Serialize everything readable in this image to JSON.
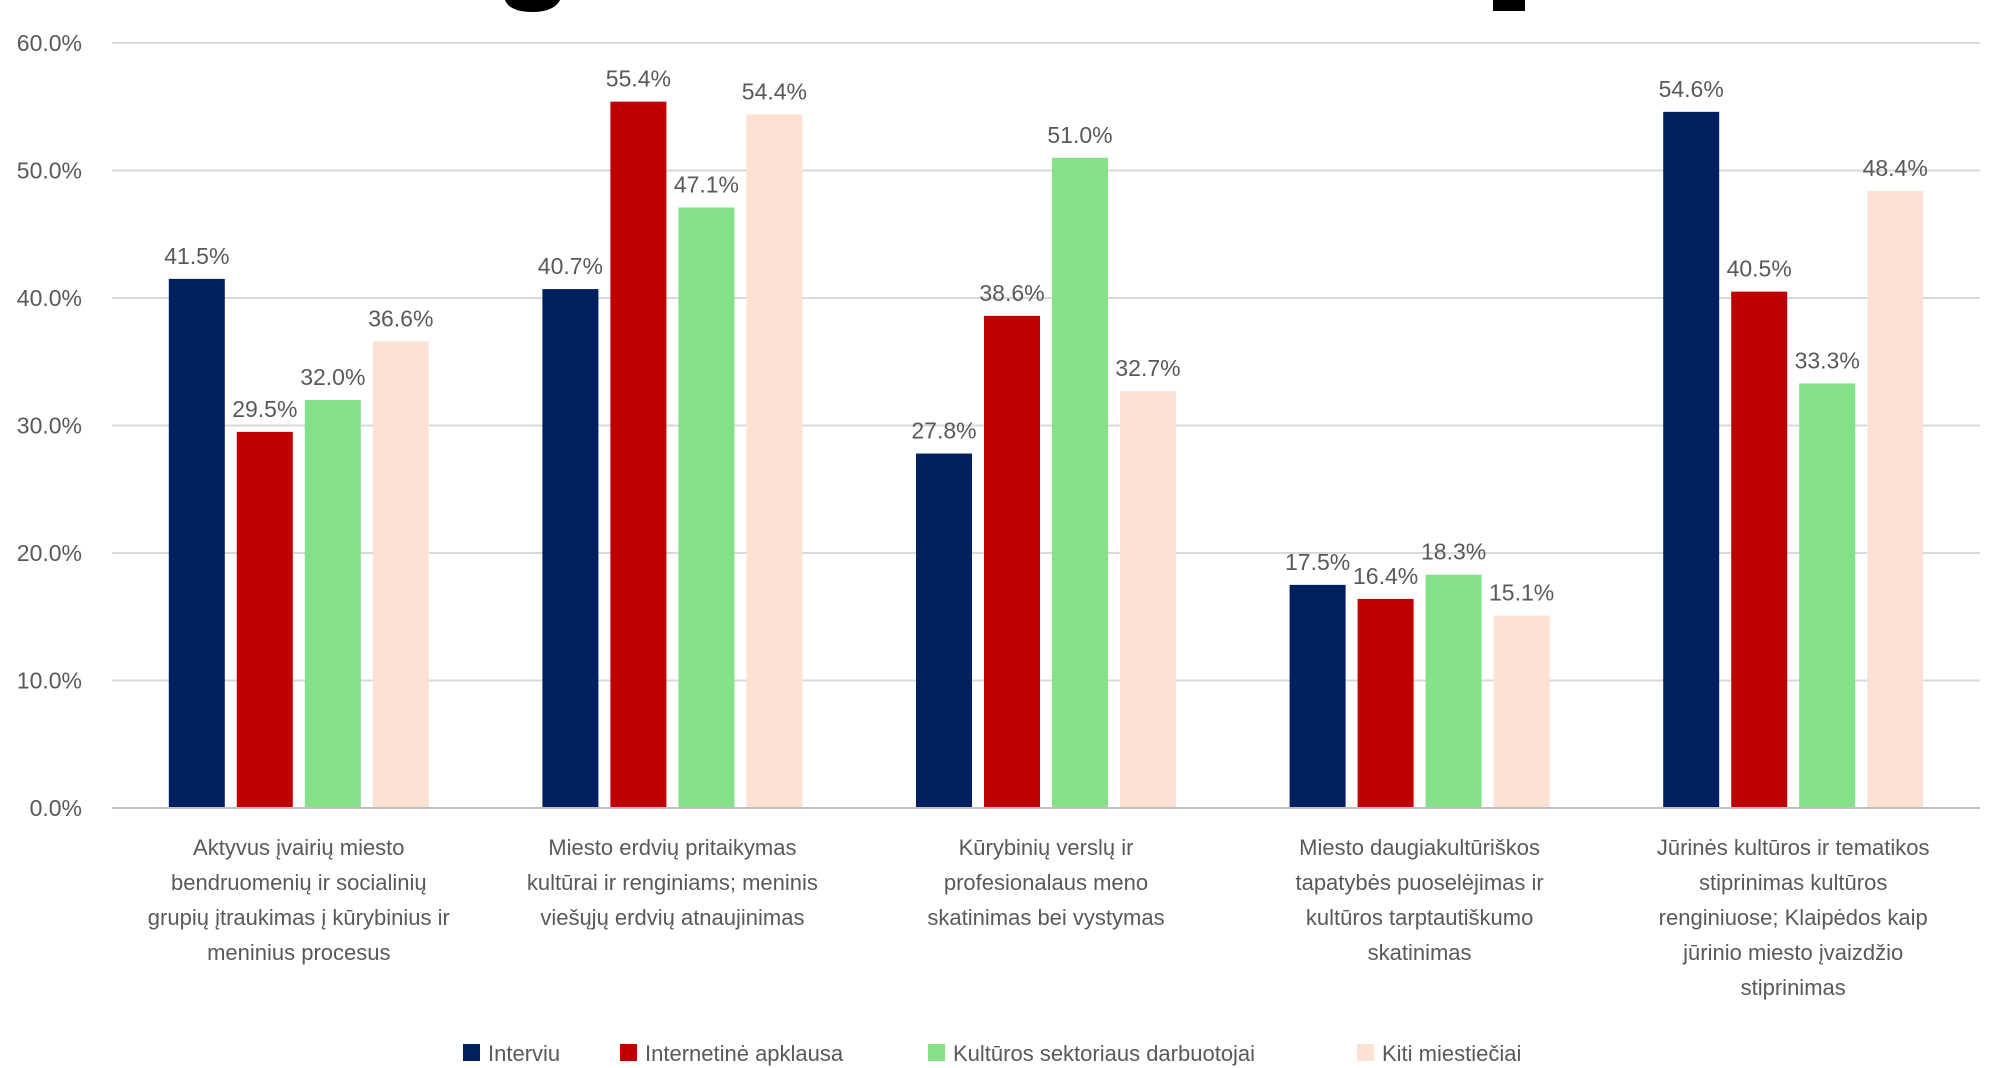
{
  "chart_data": {
    "type": "bar",
    "categories": [
      [
        "Aktyvus įvairių miesto",
        "bendruomenių ir socialinių",
        "grupių įtraukimas į kūrybinius ir",
        "meninius procesus"
      ],
      [
        "Miesto erdvių pritaikymas",
        "kultūrai ir renginiams; meninis",
        "viešųjų erdvių atnaujinimas"
      ],
      [
        "Kūrybinių verslų ir",
        "profesionalaus meno",
        "skatinimas bei vystymas"
      ],
      [
        "Miesto daugiakultūriškos",
        "tapatybės puoselėjimas ir",
        "kultūros tarptautiškumo",
        "skatinimas"
      ],
      [
        "Jūrinės kultūros ir tematikos",
        "stiprinimas kultūros",
        "renginiuose; Klaipėdos kaip",
        "jūrinio miesto įvaizdžio",
        "stiprinimas"
      ]
    ],
    "series": [
      {
        "name": "Interviu",
        "color": "#002060",
        "values": [
          41.5,
          40.7,
          27.8,
          17.5,
          54.6
        ]
      },
      {
        "name": "Internetinė apklausa",
        "color": "#C00000",
        "values": [
          29.5,
          55.4,
          38.6,
          16.4,
          40.5
        ]
      },
      {
        "name": "Kultūros sektoriaus darbuotojai",
        "color": "#85E08A",
        "values": [
          32.0,
          47.1,
          51.0,
          18.3,
          33.3
        ]
      },
      {
        "name": "Kiti miestiečiai",
        "color": "#FBE2D5",
        "values": [
          36.6,
          54.4,
          32.7,
          15.1,
          48.4
        ]
      }
    ],
    "ylim": [
      0,
      60
    ],
    "yticks": [
      0,
      10,
      20,
      30,
      40,
      50,
      60
    ],
    "ytick_labels": [
      "0.0%",
      "10.0%",
      "20.0%",
      "30.0%",
      "40.0%",
      "50.0%",
      "60.0%"
    ],
    "value_suffix": "%",
    "grid": true,
    "legend_position": "bottom",
    "gridline_color": "#D9D9D9",
    "axis_color": "#BFBFBF",
    "text_color": "#595959"
  }
}
